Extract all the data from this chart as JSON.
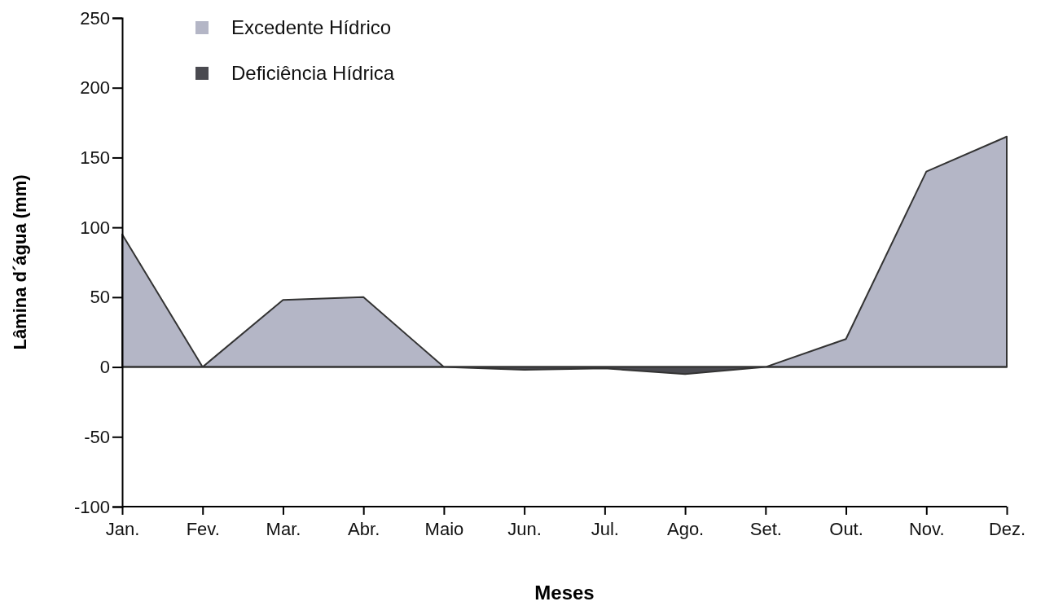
{
  "chart_data": {
    "type": "area",
    "xlabel": "Meses",
    "ylabel": "Lâmina d´água (mm)",
    "categories": [
      "Jan.",
      "Fev.",
      "Mar.",
      "Abr.",
      "Maio",
      "Jun.",
      "Jul.",
      "Ago.",
      "Set.",
      "Out.",
      "Nov.",
      "Dez."
    ],
    "series": [
      {
        "name": "Excedente Hídrico",
        "color": "#b4b6c6",
        "values": [
          95,
          0,
          48,
          50,
          0,
          0,
          0,
          0,
          0,
          20,
          140,
          165
        ]
      },
      {
        "name": "Deficiência Hídrica",
        "color": "#4a4a50",
        "values": [
          0,
          0,
          0,
          0,
          0,
          -2,
          -1,
          -5,
          0,
          0,
          0,
          0
        ]
      }
    ],
    "ylim": [
      -100,
      250
    ],
    "yticks": [
      -100,
      -50,
      0,
      50,
      100,
      150,
      200,
      250
    ],
    "grid": false,
    "legend": "top left"
  }
}
